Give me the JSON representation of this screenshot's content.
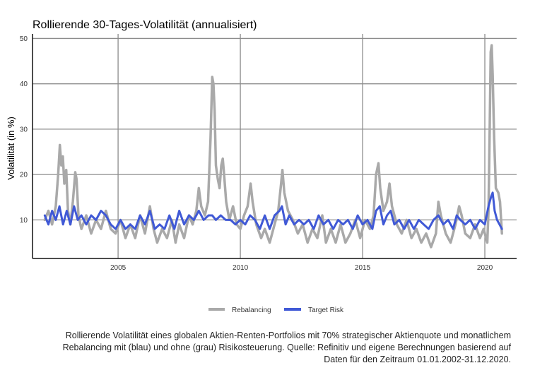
{
  "chart_data": {
    "type": "line",
    "title": "Rollierende 30-Tages-Volatilität (annualisiert)",
    "xlabel": "",
    "ylabel": "Volatilität (in %)",
    "xlim": [
      2001.5,
      2021.3
    ],
    "ylim": [
      1.5,
      51
    ],
    "x_ticks": [
      2005,
      2010,
      2015,
      2020
    ],
    "y_ticks": [
      10,
      20,
      30,
      40,
      50
    ],
    "grid": true,
    "legend_position": "bottom",
    "series": [
      {
        "name": "Rebalancing",
        "color": "#a9a9a9",
        "points": [
          [
            2002.0,
            10
          ],
          [
            2002.15,
            12
          ],
          [
            2002.3,
            9
          ],
          [
            2002.45,
            13
          ],
          [
            2002.55,
            20
          ],
          [
            2002.62,
            26.5
          ],
          [
            2002.68,
            22
          ],
          [
            2002.74,
            24
          ],
          [
            2002.8,
            18
          ],
          [
            2002.88,
            21
          ],
          [
            2002.95,
            12
          ],
          [
            2003.05,
            9
          ],
          [
            2003.15,
            14
          ],
          [
            2003.25,
            20.5
          ],
          [
            2003.3,
            19
          ],
          [
            2003.38,
            11
          ],
          [
            2003.5,
            8
          ],
          [
            2003.7,
            11
          ],
          [
            2003.9,
            7
          ],
          [
            2004.1,
            10
          ],
          [
            2004.3,
            8
          ],
          [
            2004.5,
            12
          ],
          [
            2004.7,
            8
          ],
          [
            2004.9,
            7
          ],
          [
            2005.1,
            10
          ],
          [
            2005.3,
            6
          ],
          [
            2005.5,
            9
          ],
          [
            2005.7,
            6
          ],
          [
            2005.9,
            11
          ],
          [
            2006.1,
            7
          ],
          [
            2006.3,
            13
          ],
          [
            2006.45,
            8
          ],
          [
            2006.6,
            5
          ],
          [
            2006.8,
            8
          ],
          [
            2007.0,
            6
          ],
          [
            2007.2,
            10
          ],
          [
            2007.35,
            5
          ],
          [
            2007.5,
            9
          ],
          [
            2007.7,
            6
          ],
          [
            2007.9,
            11
          ],
          [
            2008.05,
            9
          ],
          [
            2008.2,
            12
          ],
          [
            2008.3,
            17
          ],
          [
            2008.4,
            13
          ],
          [
            2008.55,
            11
          ],
          [
            2008.68,
            14
          ],
          [
            2008.78,
            28
          ],
          [
            2008.85,
            41.5
          ],
          [
            2008.9,
            40
          ],
          [
            2008.95,
            34
          ],
          [
            2009.0,
            22
          ],
          [
            2009.08,
            19
          ],
          [
            2009.15,
            17
          ],
          [
            2009.22,
            22
          ],
          [
            2009.28,
            23.5
          ],
          [
            2009.35,
            19
          ],
          [
            2009.42,
            14
          ],
          [
            2009.55,
            10
          ],
          [
            2009.7,
            13
          ],
          [
            2009.85,
            9
          ],
          [
            2010.0,
            8
          ],
          [
            2010.15,
            11
          ],
          [
            2010.3,
            13
          ],
          [
            2010.42,
            18
          ],
          [
            2010.5,
            14
          ],
          [
            2010.65,
            9
          ],
          [
            2010.85,
            6
          ],
          [
            2011.0,
            8
          ],
          [
            2011.2,
            5
          ],
          [
            2011.4,
            9
          ],
          [
            2011.55,
            12
          ],
          [
            2011.65,
            17
          ],
          [
            2011.72,
            21
          ],
          [
            2011.8,
            16
          ],
          [
            2011.95,
            12
          ],
          [
            2012.15,
            10
          ],
          [
            2012.35,
            7
          ],
          [
            2012.55,
            9
          ],
          [
            2012.75,
            5
          ],
          [
            2012.95,
            8
          ],
          [
            2013.15,
            6
          ],
          [
            2013.35,
            11
          ],
          [
            2013.5,
            5
          ],
          [
            2013.7,
            8
          ],
          [
            2013.9,
            5
          ],
          [
            2014.1,
            9
          ],
          [
            2014.3,
            5
          ],
          [
            2014.5,
            7
          ],
          [
            2014.7,
            10
          ],
          [
            2014.9,
            6
          ],
          [
            2015.1,
            10
          ],
          [
            2015.3,
            8
          ],
          [
            2015.45,
            11
          ],
          [
            2015.55,
            20
          ],
          [
            2015.65,
            22.5
          ],
          [
            2015.72,
            17
          ],
          [
            2015.85,
            12
          ],
          [
            2016.0,
            14
          ],
          [
            2016.1,
            18
          ],
          [
            2016.2,
            13
          ],
          [
            2016.4,
            9
          ],
          [
            2016.6,
            7
          ],
          [
            2016.8,
            10
          ],
          [
            2017.0,
            6
          ],
          [
            2017.2,
            8
          ],
          [
            2017.4,
            5
          ],
          [
            2017.6,
            7
          ],
          [
            2017.8,
            4
          ],
          [
            2018.0,
            7
          ],
          [
            2018.1,
            14
          ],
          [
            2018.2,
            11
          ],
          [
            2018.4,
            7
          ],
          [
            2018.6,
            5
          ],
          [
            2018.8,
            9
          ],
          [
            2018.95,
            13
          ],
          [
            2019.05,
            11
          ],
          [
            2019.2,
            7
          ],
          [
            2019.4,
            6
          ],
          [
            2019.6,
            9
          ],
          [
            2019.8,
            6
          ],
          [
            2019.95,
            8
          ],
          [
            2020.1,
            5
          ],
          [
            2020.15,
            12
          ],
          [
            2020.2,
            30
          ],
          [
            2020.24,
            47
          ],
          [
            2020.28,
            48.5
          ],
          [
            2020.32,
            42
          ],
          [
            2020.38,
            28
          ],
          [
            2020.45,
            17
          ],
          [
            2020.55,
            16
          ],
          [
            2020.62,
            14
          ],
          [
            2020.7,
            7
          ]
        ]
      },
      {
        "name": "Target Risk",
        "color": "#4059d6",
        "points": [
          [
            2002.0,
            11
          ],
          [
            2002.15,
            9
          ],
          [
            2002.3,
            12
          ],
          [
            2002.45,
            10
          ],
          [
            2002.6,
            13
          ],
          [
            2002.75,
            9
          ],
          [
            2002.9,
            12
          ],
          [
            2003.05,
            9
          ],
          [
            2003.2,
            13
          ],
          [
            2003.35,
            10
          ],
          [
            2003.5,
            11
          ],
          [
            2003.7,
            9
          ],
          [
            2003.9,
            11
          ],
          [
            2004.1,
            10
          ],
          [
            2004.3,
            12
          ],
          [
            2004.5,
            11
          ],
          [
            2004.7,
            9
          ],
          [
            2004.9,
            8
          ],
          [
            2005.1,
            10
          ],
          [
            2005.3,
            8
          ],
          [
            2005.5,
            9
          ],
          [
            2005.7,
            8
          ],
          [
            2005.9,
            11
          ],
          [
            2006.1,
            9
          ],
          [
            2006.3,
            12
          ],
          [
            2006.5,
            8
          ],
          [
            2006.7,
            9
          ],
          [
            2006.9,
            8
          ],
          [
            2007.1,
            11
          ],
          [
            2007.3,
            8
          ],
          [
            2007.5,
            12
          ],
          [
            2007.7,
            9
          ],
          [
            2007.9,
            11
          ],
          [
            2008.1,
            10
          ],
          [
            2008.3,
            12
          ],
          [
            2008.5,
            10
          ],
          [
            2008.7,
            11
          ],
          [
            2008.85,
            11
          ],
          [
            2009.0,
            10
          ],
          [
            2009.2,
            11
          ],
          [
            2009.4,
            10
          ],
          [
            2009.6,
            10
          ],
          [
            2009.8,
            9
          ],
          [
            2010.0,
            10
          ],
          [
            2010.2,
            9
          ],
          [
            2010.4,
            11
          ],
          [
            2010.6,
            10
          ],
          [
            2010.8,
            8
          ],
          [
            2011.0,
            11
          ],
          [
            2011.2,
            8
          ],
          [
            2011.4,
            11
          ],
          [
            2011.6,
            12
          ],
          [
            2011.7,
            13
          ],
          [
            2011.85,
            9
          ],
          [
            2012.0,
            11
          ],
          [
            2012.2,
            9
          ],
          [
            2012.4,
            10
          ],
          [
            2012.6,
            9
          ],
          [
            2012.8,
            10
          ],
          [
            2013.0,
            8
          ],
          [
            2013.2,
            11
          ],
          [
            2013.4,
            9
          ],
          [
            2013.6,
            10
          ],
          [
            2013.8,
            8
          ],
          [
            2014.0,
            10
          ],
          [
            2014.2,
            9
          ],
          [
            2014.4,
            10
          ],
          [
            2014.6,
            8
          ],
          [
            2014.8,
            11
          ],
          [
            2015.0,
            9
          ],
          [
            2015.2,
            10
          ],
          [
            2015.4,
            8
          ],
          [
            2015.55,
            12
          ],
          [
            2015.7,
            13
          ],
          [
            2015.85,
            9
          ],
          [
            2016.0,
            11
          ],
          [
            2016.15,
            12
          ],
          [
            2016.3,
            9
          ],
          [
            2016.5,
            10
          ],
          [
            2016.7,
            8
          ],
          [
            2016.9,
            10
          ],
          [
            2017.1,
            8
          ],
          [
            2017.3,
            10
          ],
          [
            2017.5,
            9
          ],
          [
            2017.7,
            8
          ],
          [
            2017.9,
            10
          ],
          [
            2018.1,
            11
          ],
          [
            2018.3,
            9
          ],
          [
            2018.5,
            10
          ],
          [
            2018.7,
            8
          ],
          [
            2018.85,
            11
          ],
          [
            2019.0,
            10
          ],
          [
            2019.2,
            9
          ],
          [
            2019.4,
            10
          ],
          [
            2019.6,
            8
          ],
          [
            2019.8,
            10
          ],
          [
            2020.0,
            9
          ],
          [
            2020.15,
            13
          ],
          [
            2020.25,
            15
          ],
          [
            2020.32,
            16
          ],
          [
            2020.4,
            12
          ],
          [
            2020.5,
            10
          ],
          [
            2020.6,
            9
          ],
          [
            2020.7,
            8
          ]
        ]
      }
    ],
    "caption": "Rollierende Volatilität eines globalen Aktien-Renten-Portfolios mit 70% strategischer Aktienquote und monatlichem Rebalancing mit (blau) und ohne (grau) Risikosteuerung. Quelle: Refinitiv und eigene Berechnungen basierend auf Daten für den Zeitraum 01.01.2002-31.12.2020."
  }
}
